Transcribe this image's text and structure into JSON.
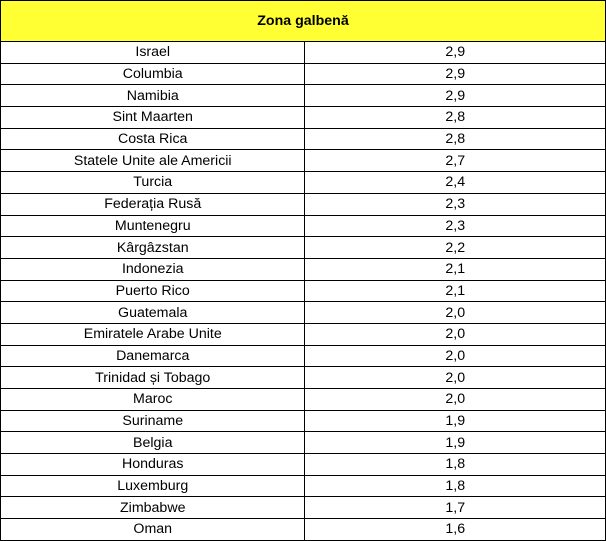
{
  "table": {
    "header": "Zona galbenă",
    "header_bg": "#ffff33",
    "rows": [
      {
        "country": "Israel",
        "value": "2,9"
      },
      {
        "country": "Columbia",
        "value": "2,9"
      },
      {
        "country": "Namibia",
        "value": "2,9"
      },
      {
        "country": "Sint Maarten",
        "value": "2,8"
      },
      {
        "country": "Costa Rica",
        "value": "2,8"
      },
      {
        "country": "Statele Unite ale Americii",
        "value": "2,7"
      },
      {
        "country": "Turcia",
        "value": "2,4"
      },
      {
        "country": "Federația Rusă",
        "value": "2,3"
      },
      {
        "country": "Muntenegru",
        "value": "2,3"
      },
      {
        "country": "Kârgâzstan",
        "value": "2,2"
      },
      {
        "country": "Indonezia",
        "value": "2,1"
      },
      {
        "country": "Puerto Rico",
        "value": "2,1"
      },
      {
        "country": "Guatemala",
        "value": "2,0"
      },
      {
        "country": "Emiratele Arabe Unite",
        "value": "2,0"
      },
      {
        "country": "Danemarca",
        "value": "2,0"
      },
      {
        "country": "Trinidad și Tobago",
        "value": "2,0"
      },
      {
        "country": "Maroc",
        "value": "2,0"
      },
      {
        "country": "Suriname",
        "value": "1,9"
      },
      {
        "country": "Belgia",
        "value": "1,9"
      },
      {
        "country": "Honduras",
        "value": "1,8"
      },
      {
        "country": "Luxemburg",
        "value": "1,8"
      },
      {
        "country": "Zimbabwe",
        "value": "1,7"
      },
      {
        "country": "Oman",
        "value": "1,6"
      }
    ]
  }
}
